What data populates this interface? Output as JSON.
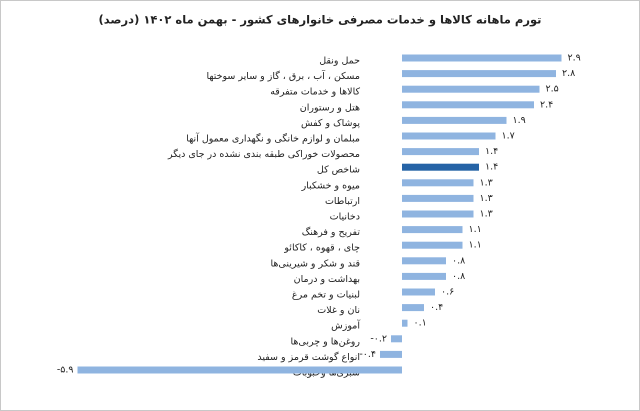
{
  "chart_data": {
    "type": "bar",
    "orientation": "horizontal",
    "title": "تورم ماهانه کالاها و خدمات مصرفی خانوارهای کشور - بهمن ماه ۱۴۰۲ (درصد)",
    "categories": [
      "حمل ونقل",
      "مسکن ، آب ، برق ، گاز و سایر سوختها",
      "کالاها و خدمات متفرقه",
      "هتل و رستوران",
      "پوشاک و کفش",
      "مبلمان و لوازم خانگی و نگهداری معمول آنها",
      "محصولات خوراکی طبقه بندی نشده در جای دیگر",
      "شاخص کل",
      "میوه و خشکبار",
      "ارتباطات",
      "دخانیات",
      "تفریح و فرهنگ",
      "چای ، قهوه ، کاکائو",
      "قند و شکر و شیرینی‌ها",
      "بهداشت و درمان",
      "لبنیات و تخم مرغ",
      "نان و غلات",
      "آموزش",
      "روغن‌ها و چربی‌ها",
      "انواع گوشت قرمز و سفید",
      "سبزی‌ها وحبوبات"
    ],
    "values": [
      2.9,
      2.8,
      2.5,
      2.4,
      1.9,
      1.7,
      1.4,
      1.4,
      1.3,
      1.3,
      1.3,
      1.1,
      1.1,
      0.8,
      0.8,
      0.6,
      0.4,
      0.1,
      -0.2,
      -0.4,
      -5.9
    ],
    "value_labels": [
      "۲.۹",
      "۲.۸",
      "۲.۵",
      "۲.۴",
      "۱.۹",
      "۱.۷",
      "۱.۴",
      "۱.۴",
      "۱.۳",
      "۱.۳",
      "۱.۳",
      "۱.۱",
      "۱.۱",
      "۰.۸",
      "۰.۸",
      "۰.۶",
      "۰.۴",
      "۰.۱",
      "-۰.۲",
      "-۰.۴",
      "-۵.۹"
    ],
    "colors": [
      "#8fb4e0",
      "#8fb4e0",
      "#8fb4e0",
      "#8fb4e0",
      "#8fb4e0",
      "#8fb4e0",
      "#8fb4e0",
      "#2563a6",
      "#8fb4e0",
      "#8fb4e0",
      "#8fb4e0",
      "#8fb4e0",
      "#8fb4e0",
      "#8fb4e0",
      "#8fb4e0",
      "#8fb4e0",
      "#8fb4e0",
      "#8fb4e0",
      "#8fb4e0",
      "#8fb4e0",
      "#8fb4e0"
    ]
  }
}
